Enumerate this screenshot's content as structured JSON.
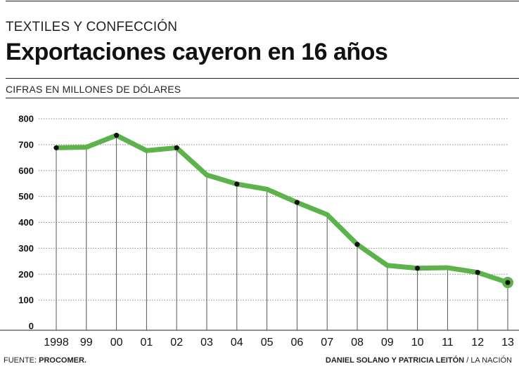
{
  "header": {
    "kicker": "TEXTILES Y CONFECCIÓN",
    "title": "Exportaciones cayeron en 16 años",
    "subtitle": "CIFRAS EN MILLONES DE DÓLARES"
  },
  "footer": {
    "source_label": "FUENTE:",
    "source_name": "PROCOMER.",
    "authors": "DANIEL SOLANO Y PATRICIA LEITÓN",
    "separator": "/",
    "outlet": "LA NACIÓN"
  },
  "chart_data": {
    "type": "line",
    "title": "Exportaciones cayeron en 16 años",
    "ylabel": "CIFRAS EN MILLONES DE DÓLARES",
    "categories": [
      "1998",
      "99",
      "00",
      "01",
      "02",
      "03",
      "04",
      "05",
      "06",
      "07",
      "08",
      "09",
      "10",
      "11",
      "12",
      "13"
    ],
    "series": [
      {
        "values": [
          688,
          690,
          736,
          677,
          688,
          583,
          548,
          528,
          477,
          430,
          315,
          234,
          223,
          225,
          207,
          168
        ]
      }
    ],
    "markers_on": [
      "1998",
      "00",
      "02",
      "04",
      "06",
      "08",
      "10",
      "12",
      "13"
    ],
    "yticks": [
      0,
      100,
      200,
      300,
      400,
      500,
      600,
      700,
      800
    ],
    "ylim": [
      0,
      800
    ],
    "grid": "horizontal dotted",
    "colors": {
      "line": "#5cb34b",
      "marker": "#111111",
      "grid": "#888888",
      "axis": "#222222"
    }
  }
}
